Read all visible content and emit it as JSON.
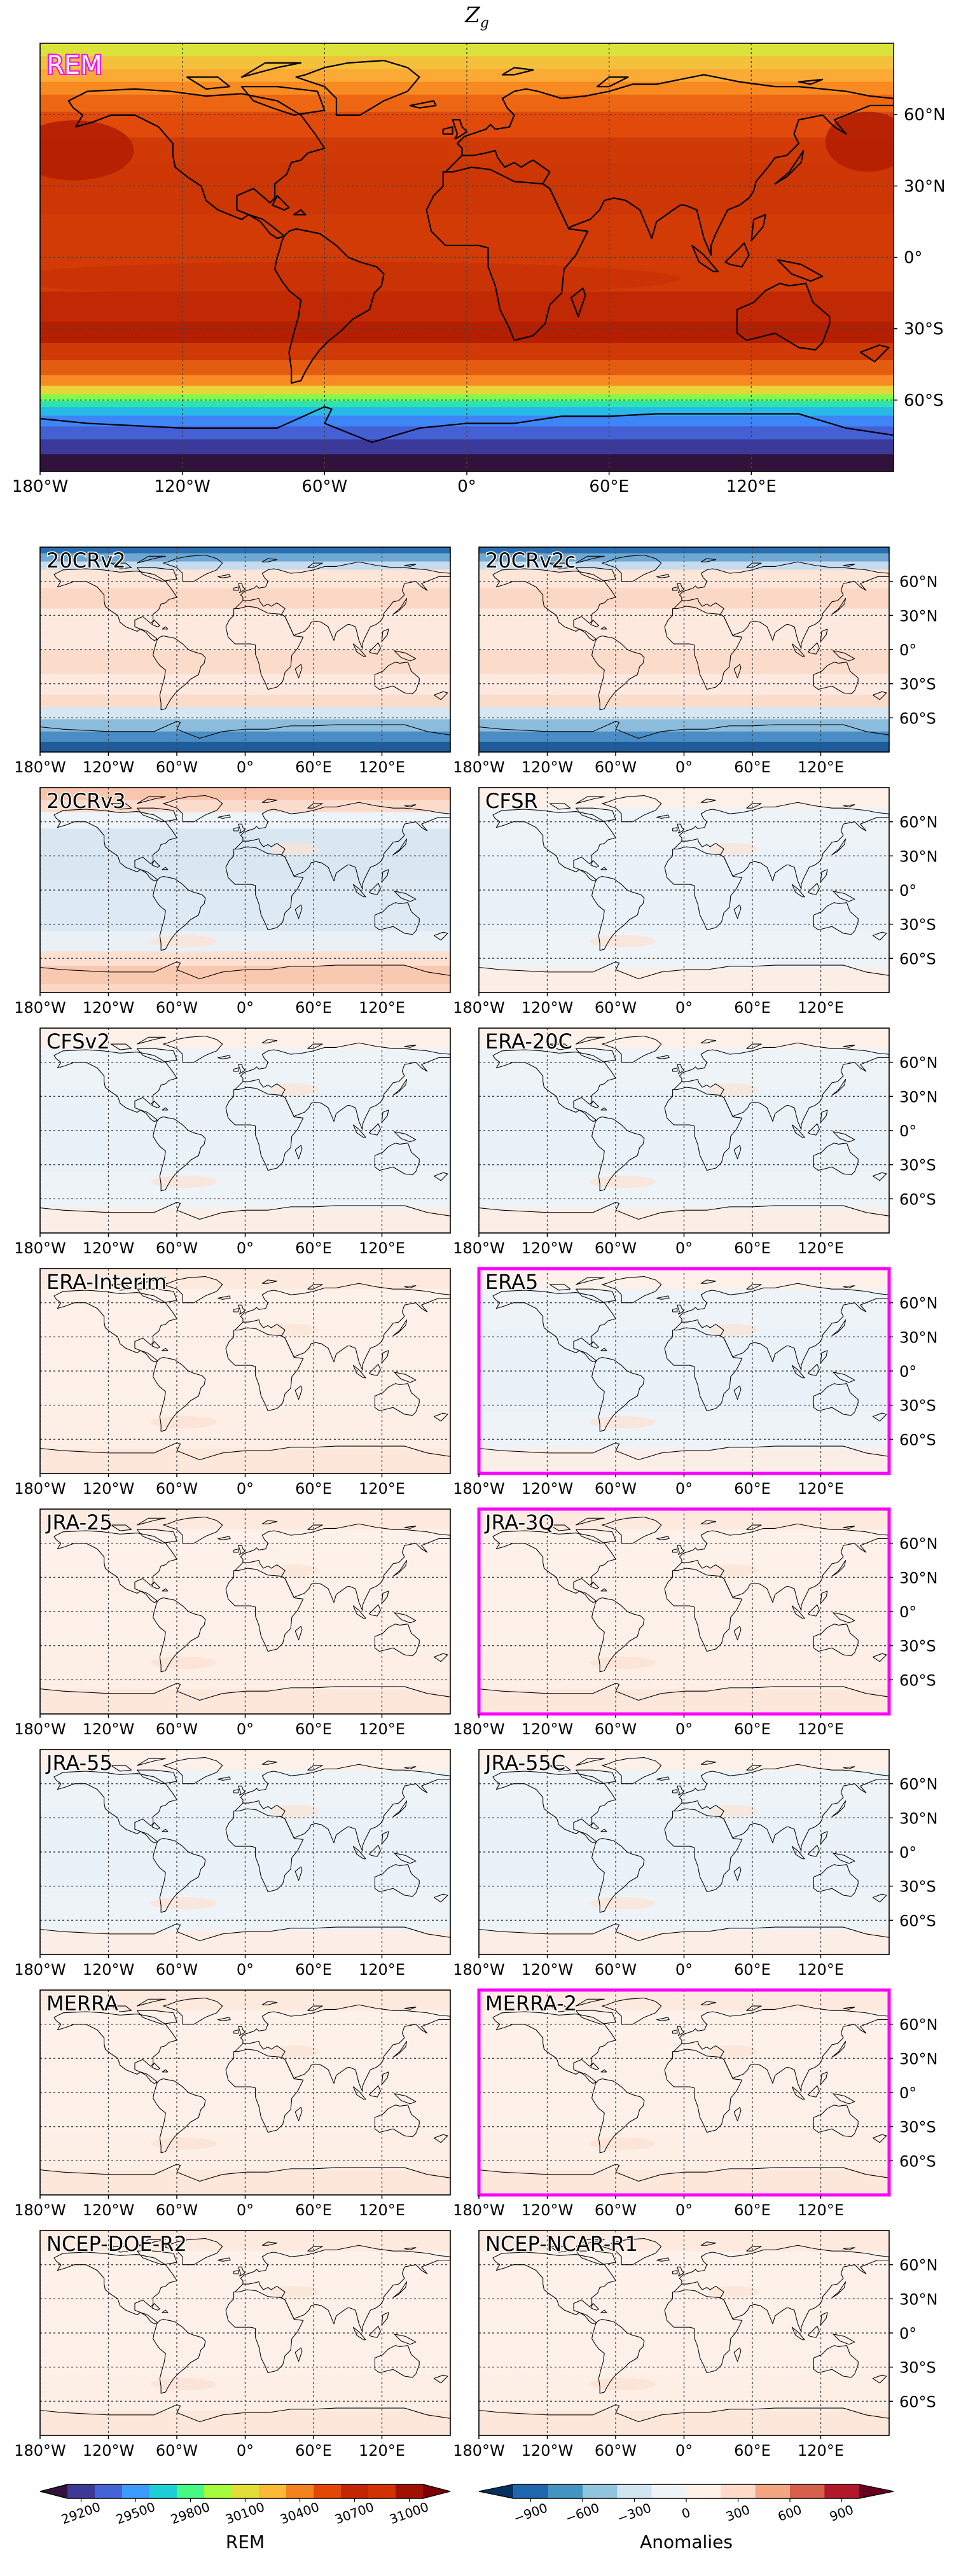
{
  "title": "Z",
  "title_sub": "g",
  "main_panel": {
    "label": "REM",
    "highlight_color": "#ff00ff"
  },
  "lon_ticks": [
    "180°W",
    "120°W",
    "60°W",
    "0°",
    "60°E",
    "120°E"
  ],
  "lat_ticks_main": [
    "60°N",
    "30°N",
    "0°",
    "30°S",
    "60°S"
  ],
  "lat_ticks_small": [
    "60°N",
    "30°N",
    "0°",
    "30°S",
    "60°S"
  ],
  "anomaly_panels": [
    {
      "label": "20CRv2",
      "highlighted": false,
      "pattern": "polar_blue"
    },
    {
      "label": "20CRv2c",
      "highlighted": false,
      "pattern": "polar_blue"
    },
    {
      "label": "20CRv3",
      "highlighted": false,
      "pattern": "bands_blue"
    },
    {
      "label": "CFSR",
      "highlighted": false,
      "pattern": "faint_blue"
    },
    {
      "label": "CFSv2",
      "highlighted": false,
      "pattern": "faint_blue"
    },
    {
      "label": "ERA-20C",
      "highlighted": false,
      "pattern": "faint_blue"
    },
    {
      "label": "ERA-Interim",
      "highlighted": false,
      "pattern": "faint_orange"
    },
    {
      "label": "ERA5",
      "highlighted": true,
      "pattern": "faint_blue"
    },
    {
      "label": "JRA-25",
      "highlighted": false,
      "pattern": "faint_orange"
    },
    {
      "label": "JRA-3Q",
      "highlighted": true,
      "pattern": "faint_orange"
    },
    {
      "label": "JRA-55",
      "highlighted": false,
      "pattern": "faint_blue"
    },
    {
      "label": "JRA-55C",
      "highlighted": false,
      "pattern": "faint_blue"
    },
    {
      "label": "MERRA",
      "highlighted": false,
      "pattern": "faint_orange"
    },
    {
      "label": "MERRA-2",
      "highlighted": true,
      "pattern": "faint_orange"
    },
    {
      "label": "NCEP-DOE-R2",
      "highlighted": false,
      "pattern": "faint_orange"
    },
    {
      "label": "NCEP-NCAR-R1",
      "highlighted": false,
      "pattern": "faint_orange"
    }
  ],
  "colorbar_rem": {
    "label": "REM",
    "ticks": [
      "29200",
      "29500",
      "29800",
      "30100",
      "30400",
      "30700",
      "31000"
    ],
    "colors": [
      "#30123b",
      "#3e3994",
      "#4662d7",
      "#3e9bfe",
      "#1bcfd4",
      "#46f884",
      "#a4fc3c",
      "#e1dd37",
      "#fbb938",
      "#f6821f",
      "#e4460a",
      "#c42503",
      "#d23105",
      "#a01101",
      "#7a0403"
    ]
  },
  "colorbar_anom": {
    "label": "Anomalies",
    "ticks": [
      "−900",
      "−600",
      "−300",
      "0",
      "300",
      "600",
      "900"
    ],
    "colors": [
      "#053061",
      "#2166ac",
      "#4393c3",
      "#92c5de",
      "#d1e5f0",
      "#eef3f8",
      "#fdf1ea",
      "#fddbc7",
      "#f4a582",
      "#d6604d",
      "#b2182b",
      "#67001f"
    ]
  }
}
